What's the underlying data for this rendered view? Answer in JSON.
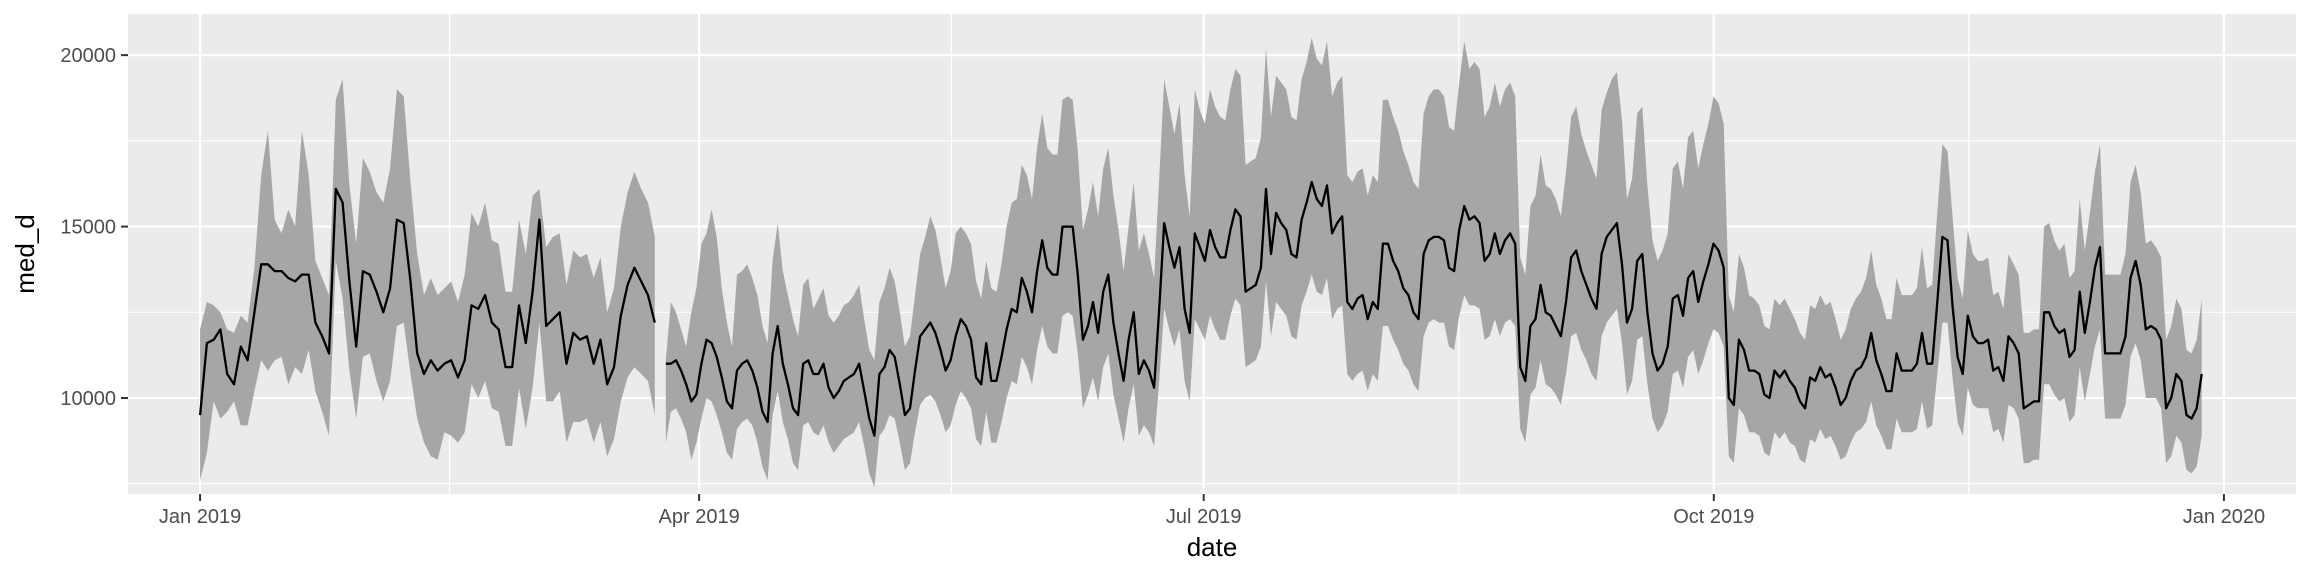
{
  "chart_data": {
    "type": "line",
    "title": "",
    "xlabel": "date",
    "ylabel": "med_d",
    "x_ticks": [
      "2019-01-01",
      "2019-04-01",
      "2019-07-01",
      "2019-10-01",
      "2020-01-01"
    ],
    "x_tick_labels": [
      "Jan 2019",
      "Apr 2019",
      "Jul 2019",
      "Oct 2019",
      "Jan 2020"
    ],
    "y_ticks": [
      10000,
      15000,
      20000
    ],
    "y_tick_labels": [
      "10000",
      "15000",
      "20000"
    ],
    "xlim": [
      "2018-12-19",
      "2020-01-14"
    ],
    "ylim": [
      7200,
      21200
    ],
    "grid": true,
    "legend": "none",
    "colors": {
      "panel": "#ebebeb",
      "grid": "#ffffff",
      "ribbon": "#a6a6a6",
      "line": "#000000"
    },
    "series": [
      {
        "start": "2019-01-01",
        "end": "2019-03-24",
        "median": [
          9500,
          11600,
          11700,
          12000,
          10700,
          10400,
          11500,
          11100,
          12500,
          13900,
          13900,
          13700,
          13700,
          13500,
          13400,
          13600,
          13600,
          12200,
          11800,
          11300,
          16100,
          15700,
          13400,
          11500,
          13700,
          13600,
          13100,
          12500,
          13200,
          15200,
          15100,
          13400,
          11300,
          10700,
          11100,
          10800,
          11000,
          11100,
          10600,
          11100,
          12700,
          12600,
          13000,
          12200,
          12000,
          10900,
          10900,
          12700,
          11600,
          13100,
          15200,
          12100,
          12300,
          12500,
          11000,
          11900,
          11700,
          11800,
          11000,
          11700,
          10400,
          10900,
          12400,
          13300,
          13800,
          13400,
          13000,
          12200
        ],
        "upper": [
          12000,
          12800,
          12700,
          12500,
          12000,
          11900,
          12400,
          12200,
          13800,
          16500,
          17800,
          15200,
          14800,
          15500,
          15000,
          17800,
          16500,
          14000,
          13500,
          13000,
          18700,
          19300,
          16200,
          14500,
          17000,
          16600,
          16000,
          15700,
          16700,
          19000,
          18800,
          16300,
          14200,
          13000,
          13500,
          13000,
          13200,
          13400,
          12800,
          13600,
          15400,
          15000,
          15700,
          14600,
          14500,
          13100,
          13100,
          15200,
          14200,
          15900,
          16100,
          14400,
          14700,
          14800,
          13300,
          14300,
          14100,
          14200,
          13500,
          14100,
          12500,
          13200,
          15000,
          16000,
          16600,
          16100,
          15700,
          14700
        ],
        "lower": [
          7600,
          8400,
          9900,
          9400,
          9600,
          9900,
          9200,
          9200,
          10200,
          11100,
          10800,
          11100,
          11200,
          10400,
          10900,
          10700,
          11400,
          10200,
          9600,
          8900,
          14000,
          12900,
          10800,
          9400,
          11200,
          11300,
          10500,
          9900,
          10500,
          12100,
          12200,
          10700,
          9400,
          8700,
          8300,
          8200,
          9000,
          8900,
          8700,
          9000,
          10400,
          10000,
          10500,
          9700,
          9600,
          8600,
          8600,
          10300,
          9100,
          10300,
          12200,
          9900,
          9900,
          10200,
          8700,
          9300,
          9300,
          9400,
          8700,
          9300,
          8300,
          8800,
          9900,
          10600,
          10900,
          10700,
          10500,
          9500
        ]
      },
      {
        "start": "2019-03-26",
        "end": "2019-12-28",
        "median": [
          11000,
          11000,
          11100,
          10800,
          10400,
          9900,
          10100,
          11000,
          11700,
          11600,
          11200,
          10600,
          9900,
          9700,
          10800,
          11000,
          11100,
          10800,
          10300,
          9600,
          9300,
          11300,
          12100,
          11000,
          10400,
          9700,
          9500,
          11000,
          11100,
          10700,
          10700,
          11000,
          10300,
          10000,
          10200,
          10500,
          10600,
          10700,
          11000,
          10200,
          9400,
          8900,
          10700,
          10900,
          11400,
          11200,
          10400,
          9500,
          9700,
          10800,
          11800,
          12000,
          12200,
          11900,
          11400,
          10800,
          11100,
          11800,
          12300,
          12100,
          11700,
          10600,
          10400,
          11600,
          10500,
          10500,
          11200,
          12000,
          12600,
          12500,
          13500,
          13100,
          12500,
          13700,
          14600,
          13800,
          13600,
          13600,
          15000,
          15000,
          15000,
          13600,
          11700,
          12100,
          12800,
          11900,
          13100,
          13600,
          12200,
          11300,
          10500,
          11700,
          12500,
          10700,
          11100,
          10800,
          10300,
          12600,
          15100,
          14400,
          13800,
          14400,
          12600,
          11900,
          14800,
          14400,
          14000,
          14900,
          14400,
          14100,
          14100,
          14900,
          15500,
          15300,
          13100,
          13200,
          13300,
          13800,
          16100,
          14200,
          15400,
          15100,
          14900,
          14200,
          14100,
          15200,
          15700,
          16300,
          15800,
          15600,
          16200,
          14800,
          15100,
          15300,
          12800,
          12600,
          12900,
          13000,
          12300,
          12800,
          12600,
          14500,
          14500,
          14000,
          13700,
          13200,
          13000,
          12500,
          12300,
          14200,
          14600,
          14700,
          14700,
          14600,
          13800,
          13700,
          14900,
          15600,
          15200,
          15300,
          15100,
          14000,
          14200,
          14800,
          14200,
          14600,
          14800,
          14500,
          10900,
          10500,
          12100,
          12300,
          13300,
          12500,
          12400,
          12100,
          11800,
          12800,
          14100,
          14300,
          13700,
          13300,
          12900,
          12600,
          14200,
          14700,
          14900,
          15100,
          13900,
          12200,
          12600,
          14000,
          14200,
          12500,
          11300,
          10800,
          11000,
          11500,
          12900,
          13000,
          12400,
          13500,
          13700,
          12800,
          13400,
          13900,
          14500,
          14300,
          13800,
          10000,
          9800,
          11700,
          11400,
          10800,
          10800,
          10700,
          10100,
          10000,
          10800,
          10600,
          10800,
          10500,
          10300,
          9900,
          9700,
          10600,
          10500,
          10900,
          10600,
          10700,
          10300,
          9800,
          10000,
          10500,
          10800,
          10900,
          11200,
          11900,
          11100,
          10700,
          10200,
          10200,
          11300,
          10800,
          10800,
          10800,
          11000,
          11900,
          11000,
          11000,
          12800,
          14700,
          14600,
          12700,
          11200,
          10700,
          12400,
          11800,
          11600,
          11600,
          11700,
          10800,
          10900,
          10500,
          11800,
          11600,
          11300,
          9700,
          9800,
          9900,
          9900,
          12500,
          12500,
          12100,
          11900,
          12000,
          11200,
          11400,
          13100,
          11900,
          12800,
          13800,
          14400,
          11300,
          11300,
          11300,
          11300,
          11800,
          13500,
          14000,
          13300,
          12000,
          12100,
          12000,
          11700,
          9700,
          10000,
          10700,
          10500,
          9500,
          9400,
          9700,
          10700
        ],
        "upper": [
          11100,
          12800,
          12500,
          12000,
          11500,
          12500,
          13200,
          14500,
          14800,
          15500,
          14700,
          13200,
          12200,
          11500,
          13600,
          13700,
          13900,
          13500,
          13000,
          12100,
          11600,
          14000,
          15100,
          13700,
          13000,
          12300,
          11800,
          13300,
          13500,
          12600,
          12900,
          13200,
          12400,
          12200,
          12400,
          12700,
          12800,
          13000,
          13300,
          12300,
          11400,
          11100,
          12800,
          13200,
          13800,
          13400,
          12500,
          11500,
          11800,
          13000,
          14200,
          14700,
          15300,
          14900,
          14100,
          13200,
          13700,
          14800,
          15000,
          14800,
          14500,
          13400,
          12900,
          14000,
          13200,
          13100,
          13900,
          15000,
          15700,
          15800,
          16800,
          16500,
          15800,
          17300,
          18300,
          17300,
          17100,
          17100,
          18700,
          18800,
          18700,
          17200,
          14900,
          15500,
          16300,
          15300,
          16700,
          17300,
          15900,
          14900,
          13700,
          15000,
          16300,
          14300,
          14800,
          14200,
          13500,
          16400,
          19300,
          18500,
          17700,
          18600,
          16500,
          15300,
          19000,
          18400,
          18000,
          19000,
          18500,
          18200,
          18100,
          19000,
          19600,
          19400,
          16800,
          16900,
          17000,
          17600,
          20200,
          18200,
          19400,
          19200,
          19000,
          18200,
          18100,
          19300,
          19800,
          20500,
          19900,
          19700,
          20400,
          18800,
          19200,
          19400,
          16500,
          16300,
          16600,
          16700,
          15900,
          16500,
          16300,
          18700,
          18700,
          18200,
          17800,
          17200,
          16800,
          16300,
          16100,
          18300,
          18800,
          19000,
          19000,
          18800,
          17900,
          17800,
          19200,
          20400,
          19600,
          19800,
          19600,
          18200,
          18500,
          19200,
          18500,
          19000,
          19200,
          18800,
          14100,
          13600,
          15600,
          15900,
          17100,
          16200,
          16100,
          15800,
          15300,
          16600,
          18200,
          18500,
          17700,
          17200,
          16800,
          16400,
          18400,
          18900,
          19300,
          19500,
          18100,
          15800,
          16400,
          18300,
          18500,
          16200,
          14600,
          14000,
          14300,
          14800,
          16700,
          16900,
          16100,
          17600,
          17800,
          16700,
          17400,
          18000,
          18800,
          18600,
          18000,
          13000,
          12500,
          14200,
          13800,
          13000,
          12900,
          12700,
          12100,
          12000,
          12900,
          12700,
          12900,
          12600,
          12300,
          11900,
          11700,
          12700,
          12600,
          13000,
          12700,
          12800,
          12300,
          11700,
          12000,
          12600,
          12900,
          13100,
          13500,
          14300,
          13300,
          12900,
          12300,
          12300,
          13500,
          13000,
          13000,
          13000,
          13200,
          14400,
          13200,
          13300,
          15400,
          17400,
          17200,
          15300,
          13500,
          12900,
          14900,
          14200,
          14000,
          14000,
          14100,
          13000,
          13100,
          12600,
          14200,
          13900,
          13600,
          11900,
          11900,
          12000,
          12000,
          15000,
          15100,
          14600,
          14300,
          14500,
          13500,
          13700,
          15800,
          14300,
          15400,
          16600,
          17400,
          13600,
          13600,
          13600,
          13600,
          14200,
          16300,
          16800,
          16000,
          14500,
          14600,
          14400,
          14100,
          11700,
          12100,
          12900,
          12600,
          11400,
          11300,
          11700,
          12900
        ],
        "lower": [
          8700,
          9600,
          9700,
          9400,
          9000,
          8200,
          8700,
          9400,
          10000,
          9900,
          9500,
          9000,
          8400,
          8200,
          9100,
          9300,
          9400,
          9200,
          8700,
          8000,
          7600,
          9500,
          10200,
          9300,
          8800,
          8100,
          7900,
          9200,
          9300,
          9000,
          8900,
          9200,
          8700,
          8400,
          8600,
          8800,
          8900,
          9000,
          9300,
          8600,
          7800,
          7400,
          8900,
          9100,
          9500,
          9400,
          8700,
          7900,
          8100,
          9000,
          9800,
          10000,
          10100,
          9900,
          9500,
          9000,
          9200,
          9800,
          10200,
          10000,
          9700,
          8800,
          8600,
          9600,
          8700,
          8700,
          9300,
          10000,
          10500,
          10400,
          11200,
          10900,
          10400,
          11400,
          12100,
          11500,
          11300,
          11300,
          12400,
          12500,
          12400,
          11300,
          9700,
          10100,
          10600,
          9900,
          10900,
          11300,
          10100,
          9400,
          8700,
          9700,
          10400,
          8900,
          9200,
          9000,
          8600,
          10500,
          12600,
          12000,
          11500,
          12000,
          10500,
          9900,
          12300,
          12000,
          11700,
          12400,
          12000,
          11700,
          11700,
          12400,
          12900,
          12700,
          10900,
          11000,
          11100,
          11500,
          13400,
          11800,
          12800,
          12600,
          12400,
          11800,
          11700,
          12700,
          13100,
          13600,
          13100,
          13000,
          13500,
          12300,
          12600,
          12700,
          10700,
          10500,
          10700,
          10800,
          10200,
          10700,
          10500,
          12100,
          12100,
          11700,
          11400,
          11000,
          10800,
          10400,
          10200,
          11800,
          12200,
          12300,
          12200,
          12200,
          11500,
          11400,
          12400,
          13000,
          12700,
          12700,
          12600,
          11700,
          11800,
          12300,
          11800,
          12200,
          12300,
          12100,
          9100,
          8700,
          10100,
          10300,
          11100,
          10400,
          10300,
          10100,
          9800,
          10700,
          11800,
          11900,
          11400,
          11100,
          10700,
          10500,
          11800,
          12200,
          12400,
          12600,
          11600,
          10100,
          10500,
          11700,
          11800,
          10400,
          9400,
          9000,
          9200,
          9600,
          10700,
          10800,
          10300,
          11200,
          11400,
          10700,
          11100,
          11600,
          12000,
          11900,
          11500,
          8300,
          8100,
          9700,
          9500,
          9000,
          9000,
          8900,
          8400,
          8300,
          9000,
          8800,
          9000,
          8700,
          8600,
          8200,
          8100,
          8800,
          8700,
          9100,
          8800,
          8900,
          8600,
          8200,
          8300,
          8700,
          9000,
          9100,
          9300,
          9900,
          9200,
          8900,
          8500,
          8500,
          9400,
          9000,
          9000,
          9000,
          9100,
          9900,
          9100,
          9200,
          10700,
          12200,
          12200,
          10600,
          9300,
          8900,
          10300,
          9800,
          9700,
          9700,
          9700,
          9000,
          9100,
          8700,
          9800,
          9700,
          9400,
          8100,
          8100,
          8200,
          8200,
          10400,
          10400,
          10100,
          9900,
          10000,
          9300,
          9500,
          10900,
          9900,
          10700,
          11500,
          12000,
          9400,
          9400,
          9400,
          9400,
          9800,
          11200,
          11600,
          11100,
          10000,
          10000,
          10000,
          9700,
          8100,
          8300,
          8900,
          8700,
          7900,
          7800,
          8000,
          8900
        ]
      }
    ]
  }
}
